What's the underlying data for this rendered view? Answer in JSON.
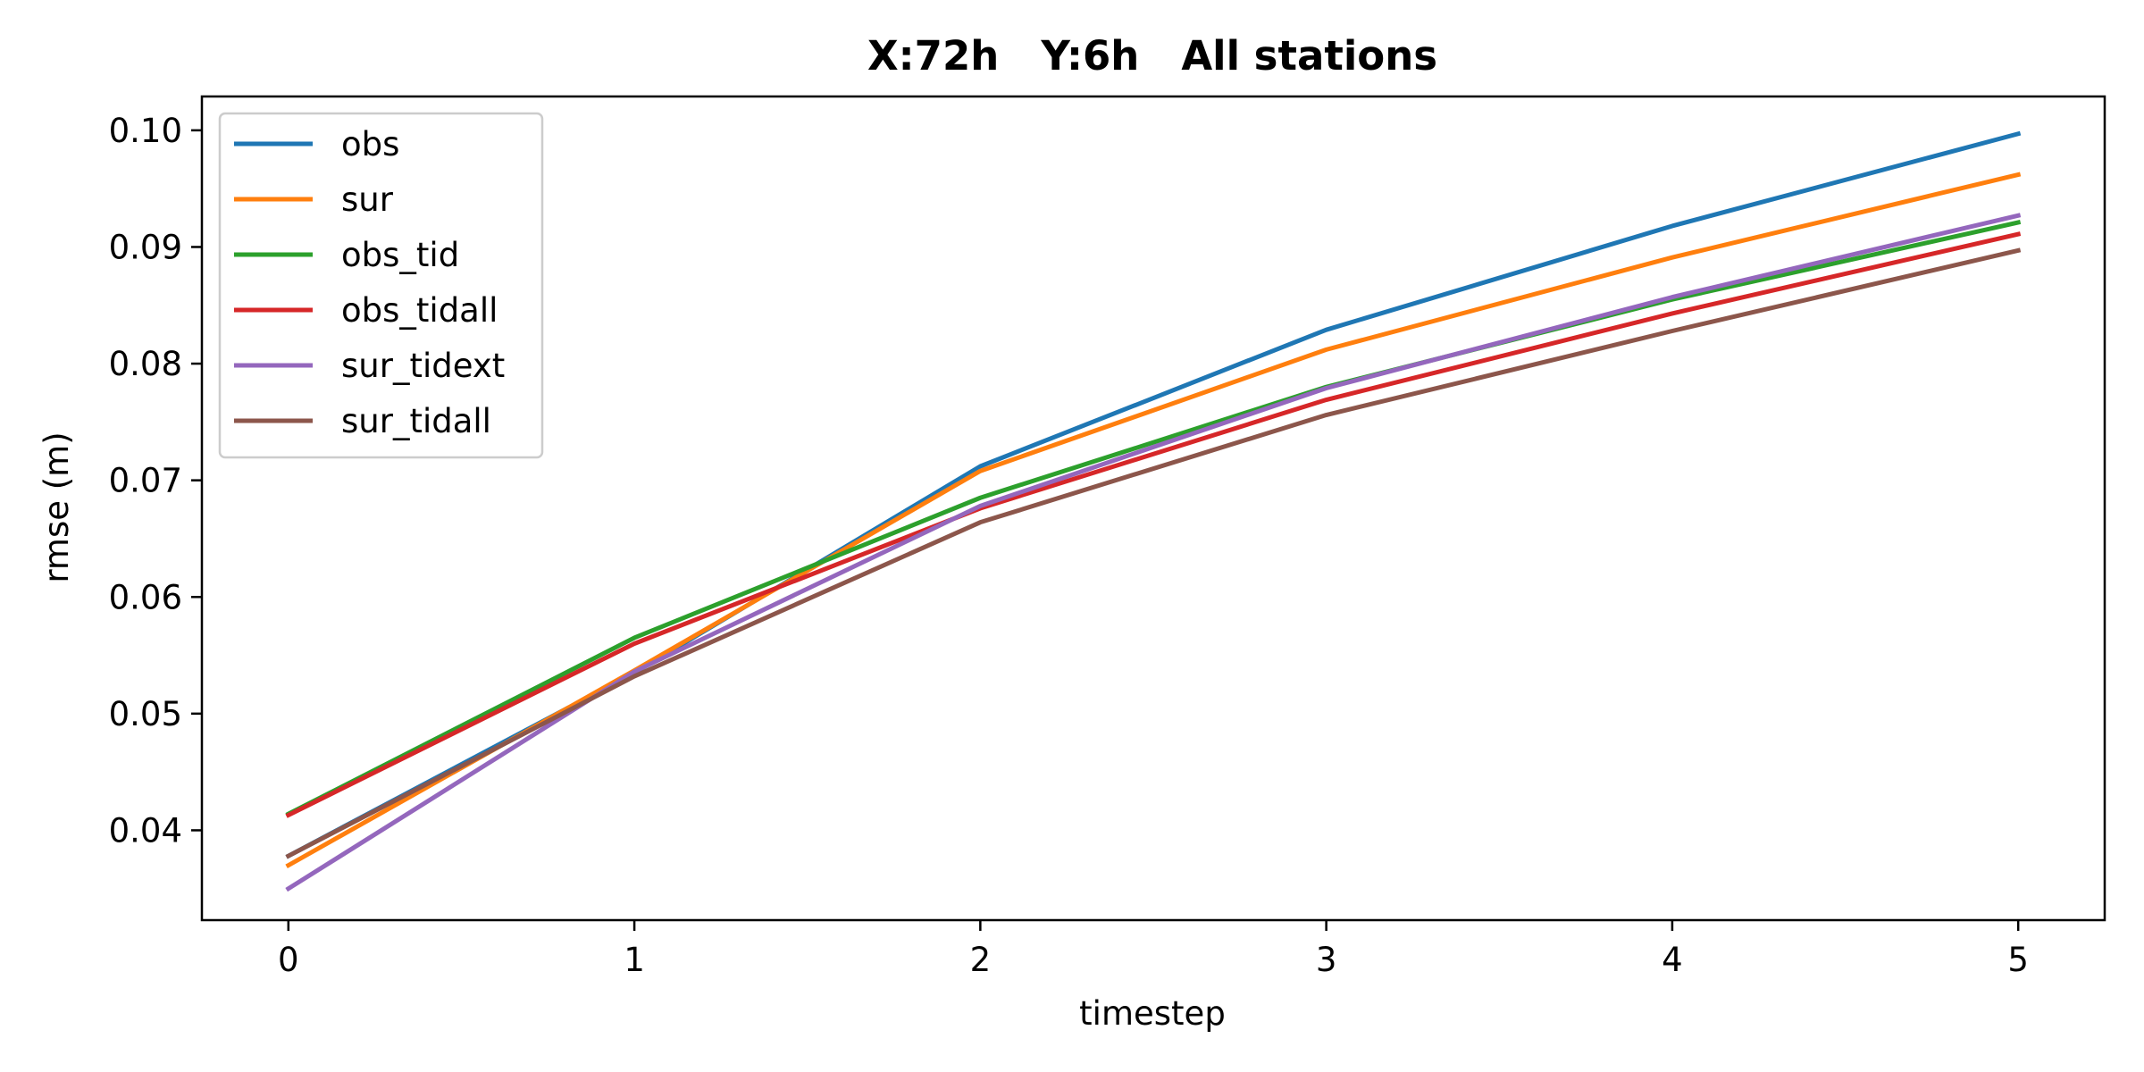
{
  "chart_data": {
    "type": "line",
    "title": "X:72h   Y:6h   All stations",
    "xlabel": "timestep",
    "ylabel": "rmse (m)",
    "x": [
      0,
      1,
      2,
      3,
      4,
      5
    ],
    "xlim": [
      -0.25,
      5.25
    ],
    "ylim": [
      0.0323,
      0.1029
    ],
    "xticks": [
      "0",
      "1",
      "2",
      "3",
      "4",
      "5"
    ],
    "yticks": [
      "0.04",
      "0.05",
      "0.06",
      "0.07",
      "0.08",
      "0.09",
      "0.10"
    ],
    "grid": false,
    "legend_position": "upper-left",
    "series": [
      {
        "name": "obs",
        "color": "#1f77b4",
        "values": [
          0.0378,
          0.0535,
          0.0712,
          0.0829,
          0.0918,
          0.0997
        ]
      },
      {
        "name": "sur",
        "color": "#ff7f0e",
        "values": [
          0.037,
          0.0537,
          0.0708,
          0.0812,
          0.0891,
          0.0962
        ]
      },
      {
        "name": "obs_tid",
        "color": "#2ca02c",
        "values": [
          0.0414,
          0.0565,
          0.0685,
          0.078,
          0.0855,
          0.0921
        ]
      },
      {
        "name": "obs_tidall",
        "color": "#d62728",
        "values": [
          0.0413,
          0.056,
          0.0676,
          0.0769,
          0.0843,
          0.0911
        ]
      },
      {
        "name": "sur_tidext",
        "color": "#9467bd",
        "values": [
          0.035,
          0.0536,
          0.0678,
          0.0779,
          0.0857,
          0.0927
        ]
      },
      {
        "name": "sur_tidall",
        "color": "#8c564b",
        "values": [
          0.0378,
          0.0532,
          0.0664,
          0.0756,
          0.0828,
          0.0897
        ]
      }
    ]
  }
}
